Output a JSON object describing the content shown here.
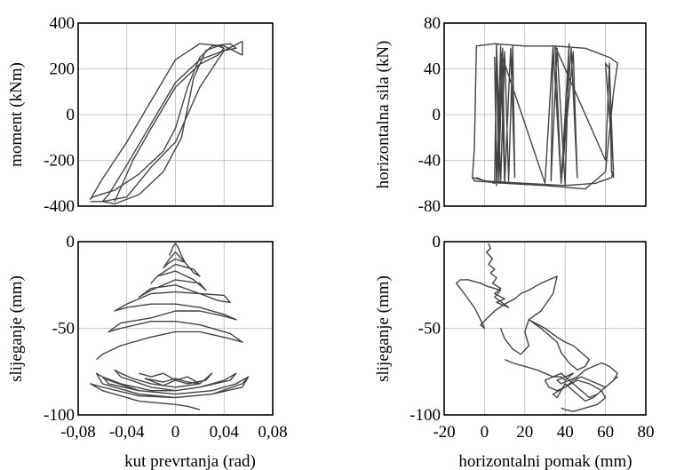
{
  "chart_data": [
    {
      "id": "moment",
      "type": "line",
      "xlabel": "",
      "ylabel": "moment (kNm)",
      "xlim": [
        -0.08,
        0.08
      ],
      "ylim": [
        -400,
        400
      ],
      "xticks": [],
      "yticks": [
        "400",
        "200",
        "0",
        "-200",
        "-400"
      ],
      "grid": true,
      "series": [
        {
          "x": [
            -0.07,
            -0.06,
            -0.04,
            -0.02,
            0.0,
            0.02,
            0.04,
            0.055,
            0.055,
            0.04,
            0.02,
            0.0,
            -0.02,
            -0.04,
            -0.06,
            -0.07,
            -0.068,
            -0.05,
            -0.03,
            -0.01,
            0.0,
            0.01,
            0.02,
            0.03,
            0.045,
            0.05,
            0.04,
            0.02,
            0.0,
            -0.02,
            -0.04,
            -0.055,
            -0.06,
            -0.05,
            -0.03,
            -0.01,
            0.005,
            0.015,
            0.025,
            0.035,
            0.04,
            0.035,
            0.02,
            0.0,
            -0.02,
            -0.035,
            -0.045,
            -0.05
          ],
          "y": [
            -380,
            -380,
            -360,
            -230,
            -120,
            120,
            280,
            320,
            260,
            300,
            310,
            240,
            60,
            -120,
            -280,
            -370,
            -360,
            -330,
            -260,
            -160,
            -60,
            120,
            250,
            300,
            310,
            290,
            280,
            240,
            140,
            -40,
            -220,
            -350,
            -380,
            -390,
            -350,
            -250,
            -100,
            160,
            280,
            300,
            290,
            260,
            220,
            120,
            -60,
            -200,
            -320,
            -380
          ]
        }
      ]
    },
    {
      "id": "sila",
      "type": "line",
      "xlabel": "",
      "ylabel": "horizontalna sila (kN)",
      "xlim": [
        -20,
        80
      ],
      "ylim": [
        -80,
        80
      ],
      "xticks": [],
      "yticks": [
        "80",
        "40",
        "0",
        "-40",
        "-80"
      ],
      "grid": true,
      "series": [
        {
          "x": [
            -6,
            -5,
            -4,
            5,
            20,
            35,
            50,
            62,
            66,
            64,
            60,
            50,
            30,
            10,
            -5,
            -6,
            5,
            6,
            7,
            8,
            6,
            5,
            6,
            8,
            10,
            9,
            7,
            6,
            8,
            10,
            12,
            14,
            15,
            13,
            10,
            8,
            30,
            34,
            38,
            42,
            40,
            36,
            33,
            34,
            38,
            44,
            46,
            43,
            38,
            35,
            60,
            62,
            63,
            64,
            62,
            60,
            64,
            63,
            55,
            40,
            20,
            0,
            -4
          ],
          "y": [
            -55,
            -30,
            60,
            62,
            60,
            60,
            58,
            50,
            45,
            20,
            -50,
            -65,
            -62,
            -60,
            -58,
            -55,
            -60,
            60,
            -60,
            55,
            -58,
            50,
            -62,
            60,
            -55,
            58,
            -60,
            62,
            -60,
            55,
            -58,
            60,
            -55,
            58,
            -60,
            55,
            -60,
            60,
            -60,
            62,
            -62,
            58,
            -58,
            60,
            -60,
            55,
            -55,
            58,
            -60,
            60,
            -40,
            45,
            -50,
            -55,
            40,
            45,
            -48,
            -55,
            -60,
            -62,
            -60,
            -58,
            -55
          ]
        }
      ]
    },
    {
      "id": "slijeganje_kut",
      "type": "line",
      "xlabel": "kut prevrtanja (rad)",
      "ylabel": "slijeganje (mm)",
      "xlim": [
        -0.08,
        0.08
      ],
      "ylim": [
        -100,
        0
      ],
      "xticks": [
        "-0,08",
        "-0,04",
        "0",
        "0,04",
        "0,08"
      ],
      "yticks": [
        "0",
        "-50",
        "-100"
      ],
      "grid": true,
      "series": [
        {
          "x": [
            -0.005,
            -0.002,
            0.0,
            0.002,
            0.005,
            0.008,
            0.005,
            0.0,
            -0.005,
            -0.01,
            -0.005,
            0.0,
            0.008,
            0.015,
            0.02,
            0.015,
            0.0,
            -0.015,
            -0.02,
            -0.015,
            0.0,
            0.015,
            0.025,
            0.02,
            0.0,
            -0.02,
            -0.03,
            -0.02,
            0.0,
            0.02,
            0.035,
            0.045,
            0.04,
            0.02,
            0.0,
            -0.02,
            -0.04,
            -0.05,
            -0.04,
            -0.02,
            0.0,
            0.02,
            0.04,
            0.05,
            0.04,
            0.02,
            0.0,
            -0.02,
            -0.045,
            -0.055,
            -0.045,
            -0.02,
            0.0,
            0.02,
            0.045,
            0.055,
            0.045,
            0.02,
            0.0,
            -0.02,
            -0.045,
            -0.06,
            -0.065
          ],
          "y": [
            -8,
            -3,
            -1,
            -3,
            -8,
            -12,
            -10,
            -6,
            -10,
            -15,
            -12,
            -10,
            -12,
            -18,
            -20,
            -16,
            -13,
            -20,
            -24,
            -20,
            -17,
            -22,
            -28,
            -24,
            -22,
            -28,
            -32,
            -27,
            -25,
            -30,
            -34,
            -35,
            -31,
            -30,
            -29,
            -30,
            -36,
            -40,
            -38,
            -36,
            -36,
            -38,
            -42,
            -45,
            -43,
            -40,
            -40,
            -44,
            -47,
            -52,
            -50,
            -46,
            -46,
            -48,
            -53,
            -58,
            -56,
            -52,
            -52,
            -55,
            -60,
            -65,
            -68
          ]
        },
        {
          "x": [
            -0.03,
            -0.02,
            -0.01,
            0.0,
            0.01,
            0.02,
            0.01,
            0.0,
            -0.01,
            -0.025,
            -0.01,
            0.0,
            0.01,
            0.025,
            0.03,
            0.02,
            0.0,
            -0.02,
            -0.035,
            -0.045,
            -0.05,
            -0.045,
            -0.02,
            0.0,
            0.02,
            0.04,
            0.05,
            0.045,
            0.02,
            0.0,
            -0.02,
            -0.045,
            -0.06,
            -0.055,
            -0.03,
            0.0,
            0.03,
            0.05,
            0.06,
            0.05,
            0.03,
            0.0,
            -0.03,
            -0.055,
            -0.065,
            -0.06,
            -0.03,
            0.0,
            0.03,
            0.055,
            0.06,
            0.055,
            0.03,
            0.0,
            -0.03,
            -0.06,
            -0.07,
            -0.06,
            -0.03,
            0.0,
            0.01,
            0.02
          ],
          "y": [
            -76,
            -78,
            -76,
            -80,
            -78,
            -82,
            -81,
            -79,
            -81,
            -79,
            -83,
            -80,
            -82,
            -80,
            -76,
            -82,
            -84,
            -82,
            -79,
            -76,
            -74,
            -78,
            -84,
            -86,
            -84,
            -80,
            -76,
            -80,
            -84,
            -86,
            -86,
            -82,
            -78,
            -82,
            -86,
            -88,
            -86,
            -82,
            -78,
            -82,
            -86,
            -88,
            -86,
            -80,
            -76,
            -82,
            -88,
            -90,
            -88,
            -82,
            -78,
            -84,
            -88,
            -90,
            -89,
            -84,
            -82,
            -86,
            -92,
            -94,
            -95,
            -97
          ]
        }
      ]
    },
    {
      "id": "slijeganje_pomak",
      "type": "line",
      "xlabel": "horizontalni pomak (mm)",
      "ylabel": "slijeganje (mm)",
      "xlim": [
        -20,
        80
      ],
      "ylim": [
        -100,
        0
      ],
      "xticks": [
        "-20",
        "0",
        "20",
        "40",
        "60",
        "80"
      ],
      "yticks": [
        "0",
        "-50",
        "-100"
      ],
      "grid": true,
      "series": [
        {
          "x": [
            2,
            3,
            1,
            4,
            2,
            5,
            3,
            6,
            4,
            8,
            5,
            10,
            6,
            12,
            5,
            8,
            2,
            -2,
            -8,
            -12,
            -14,
            -10,
            -5,
            -2,
            0,
            -2,
            5,
            10,
            15,
            18,
            22,
            28,
            32,
            36,
            34,
            28,
            22,
            30,
            36,
            40,
            44,
            48,
            52,
            50,
            46,
            42,
            38,
            36,
            28,
            22,
            20,
            22,
            18,
            14,
            10,
            8
          ],
          "y": [
            -1,
            -4,
            -6,
            -10,
            -13,
            -16,
            -18,
            -21,
            -24,
            -27,
            -30,
            -33,
            -35,
            -38,
            -32,
            -28,
            -26,
            -24,
            -22,
            -22,
            -24,
            -30,
            -38,
            -45,
            -50,
            -48,
            -40,
            -36,
            -33,
            -30,
            -28,
            -24,
            -22,
            -20,
            -30,
            -40,
            -45,
            -50,
            -55,
            -58,
            -60,
            -64,
            -68,
            -72,
            -74,
            -70,
            -64,
            -58,
            -50,
            -45,
            -52,
            -60,
            -65,
            -62,
            -56,
            -50
          ]
        },
        {
          "x": [
            10,
            14,
            20,
            26,
            30,
            34,
            38,
            40,
            42,
            44,
            40,
            36,
            38,
            42,
            46,
            50,
            54,
            58,
            62,
            66,
            64,
            60,
            56,
            52,
            48,
            44,
            40,
            36,
            32,
            30,
            34,
            38,
            40,
            44,
            48,
            52,
            56,
            60,
            64,
            66,
            62,
            58,
            54,
            50,
            46,
            42,
            40,
            38,
            36,
            34,
            40,
            46,
            52,
            58,
            60,
            56,
            50,
            44,
            40,
            38
          ],
          "y": [
            -68,
            -70,
            -72,
            -74,
            -76,
            -78,
            -78,
            -80,
            -78,
            -76,
            -78,
            -80,
            -82,
            -80,
            -78,
            -74,
            -72,
            -70,
            -72,
            -76,
            -80,
            -84,
            -82,
            -80,
            -78,
            -80,
            -84,
            -86,
            -84,
            -80,
            -78,
            -76,
            -78,
            -82,
            -86,
            -90,
            -88,
            -84,
            -80,
            -78,
            -82,
            -86,
            -90,
            -92,
            -88,
            -84,
            -82,
            -86,
            -90,
            -88,
            -84,
            -80,
            -82,
            -86,
            -90,
            -94,
            -96,
            -98,
            -97,
            -96
          ]
        }
      ]
    }
  ]
}
